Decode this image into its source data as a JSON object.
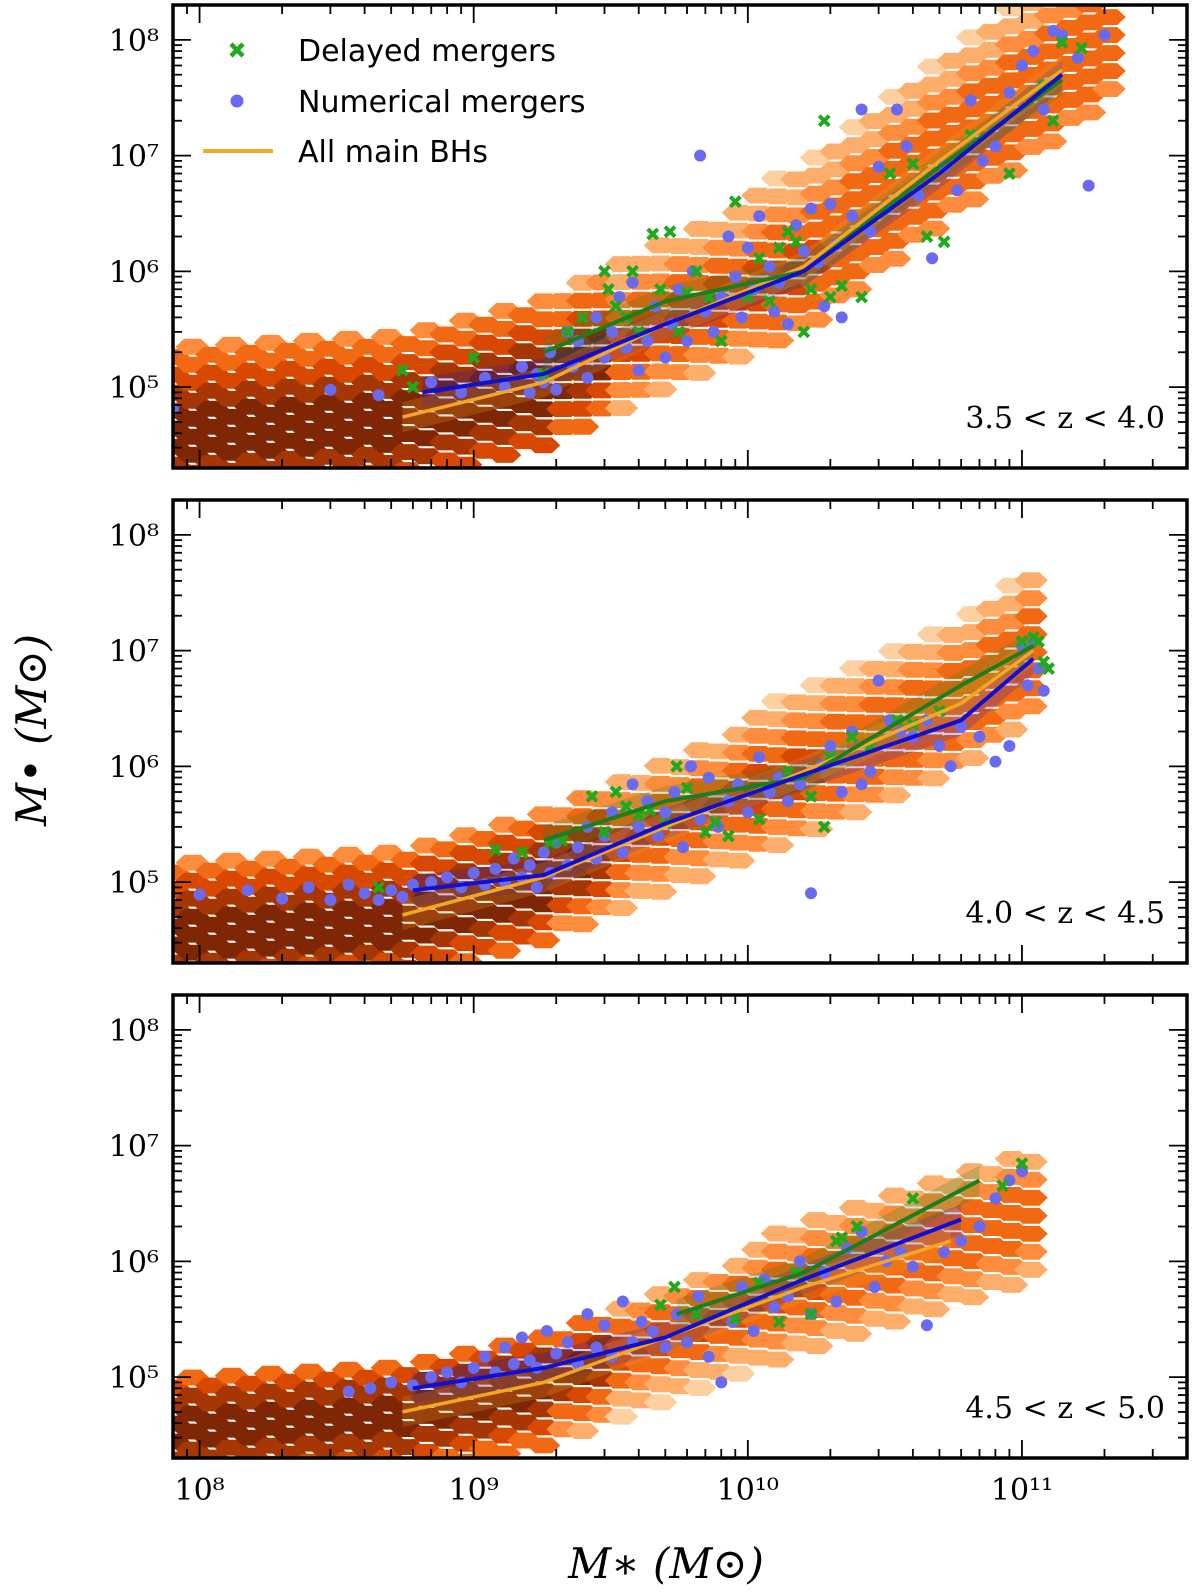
{
  "chart_data": {
    "type": "scatter",
    "x_scale": "log",
    "y_scale": "log",
    "xlabel": "M∗ (M⊙)",
    "ylabel": "M• (M⊙)",
    "xlim": [
      80000000,
      400000000000
    ],
    "ylim": [
      20000,
      200000000
    ],
    "x_ticks": [
      {
        "value": 100000000,
        "label": "10⁸"
      },
      {
        "value": 1000000000,
        "label": "10⁹"
      },
      {
        "value": 10000000000,
        "label": "10¹⁰"
      },
      {
        "value": 100000000000,
        "label": "10¹¹"
      }
    ],
    "y_ticks": [
      {
        "value": 100000,
        "label": "10⁵"
      },
      {
        "value": 1000000,
        "label": "10⁶"
      },
      {
        "value": 10000000,
        "label": "10⁷"
      },
      {
        "value": 100000000,
        "label": "10⁸"
      }
    ],
    "legend": {
      "position": "top-left",
      "entries": [
        {
          "label": "Delayed mergers",
          "marker": "x",
          "color": "#1fa91f"
        },
        {
          "label": "Numerical mergers",
          "marker": "dot",
          "color": "#6a6af0"
        },
        {
          "label": "All main BHs",
          "marker": "line",
          "color": "#f5a623"
        }
      ]
    },
    "colors": {
      "delayed": "#1fa91f",
      "numerical": "#6a6af0",
      "delayed_median": "#1e7e1e",
      "numerical_median": "#1010d0",
      "all_median": "#f5a623",
      "hexbin_light": "#fde0c5",
      "hexbin_dark": "#8c2a04"
    },
    "panels": [
      {
        "label": "3.5 < z < 4.0",
        "all_main_bhs_median": {
          "x": [
            550000000,
            1800000000,
            5000000000,
            16000000000,
            50000000000,
            140000000000
          ],
          "y": [
            55000,
            110000,
            350000,
            1100000,
            9000000,
            55000000
          ]
        },
        "numerical_median": {
          "x": [
            650000000,
            1800000000,
            5000000000,
            16000000000,
            50000000000,
            140000000000
          ],
          "y": [
            90000,
            130000,
            350000,
            1000000,
            7000000,
            50000000
          ]
        },
        "delayed_median": {
          "x": [
            1800000000,
            5000000000,
            16000000000,
            50000000000,
            140000000000
          ],
          "y": [
            200000,
            550000,
            1000000,
            8000000,
            45000000
          ]
        },
        "delayed_mergers": {
          "x": [
            550000000,
            600000000,
            1000000000,
            1800000000,
            2200000000,
            2500000000,
            3000000000,
            3100000000,
            3300000000,
            3600000000,
            3800000000,
            4000000000,
            4500000000,
            4800000000,
            5200000000,
            5600000000,
            6000000000,
            6500000000,
            7200000000,
            8000000000,
            9000000000,
            10000000000,
            11000000000,
            12000000000,
            13000000000,
            14000000000,
            15000000000,
            16000000000,
            17000000000,
            19000000000,
            20000000000,
            22000000000,
            26000000000,
            33000000000,
            40000000000,
            45000000000,
            52000000000,
            65000000000,
            90000000000,
            120000000000,
            130000000000,
            140000000000,
            165000000000
          ],
          "y": [
            140000,
            100000,
            180000,
            130000,
            300000,
            400000,
            1000000,
            700000,
            500000,
            400000,
            1000000,
            300000,
            2100000,
            700000,
            2200000,
            300000,
            650000,
            1000000,
            600000,
            250000,
            4000000,
            600000,
            1300000,
            550000,
            1600000,
            2200000,
            1800000,
            300000,
            700000,
            20000000,
            600000,
            750000,
            600000,
            7000000,
            8500000,
            2000000,
            1800000,
            15000000,
            7000000,
            40000000,
            20000000,
            95000000,
            85000000
          ]
        },
        "numerical_mergers": {
          "x": [
            80000000,
            300000000,
            450000000,
            700000000,
            900000000,
            1100000000,
            1300000000,
            1500000000,
            1600000000,
            1700000000,
            1800000000,
            1900000000,
            2000000000,
            2200000000,
            2300000000,
            2400000000,
            2600000000,
            2800000000,
            3000000000,
            3200000000,
            3400000000,
            3600000000,
            3800000000,
            4000000000,
            4300000000,
            4600000000,
            5000000000,
            5300000000,
            5600000000,
            6000000000,
            6300000000,
            6700000000,
            7000000000,
            7500000000,
            8000000000,
            8500000000,
            9000000000,
            9500000000,
            10000000000,
            10500000000,
            11000000000,
            12000000000,
            12500000000,
            13000000000,
            14000000000,
            15000000000,
            16000000000,
            17000000000,
            18000000000,
            19000000000,
            20000000000,
            21000000000,
            22000000000,
            24000000000,
            26000000000,
            28000000000,
            30000000000,
            32000000000,
            35000000000,
            38000000000,
            42000000000,
            47000000000,
            52000000000,
            58000000000,
            65000000000,
            72000000000,
            80000000000,
            90000000000,
            100000000000,
            110000000000,
            120000000000,
            130000000000,
            140000000000,
            160000000000,
            175000000000,
            200000000000
          ],
          "y": [
            65000,
            95000,
            85000,
            110000,
            90000,
            120000,
            100000,
            150000,
            90000,
            130000,
            110000,
            200000,
            95000,
            300000,
            150000,
            250000,
            120000,
            400000,
            180000,
            300000,
            600000,
            220000,
            800000,
            140000,
            250000,
            500000,
            180000,
            350000,
            700000,
            250000,
            1000000,
            10000000,
            450000,
            300000,
            600000,
            2000000,
            900000,
            400000,
            1600000,
            700000,
            3000000,
            1100000,
            450000,
            800000,
            350000,
            2500000,
            1500000,
            3500000,
            1200000,
            500000,
            3800000,
            1700000,
            400000,
            3000000,
            25000000,
            2200000,
            8000000,
            3500000,
            25000000,
            12000000,
            4500000,
            1300000,
            8000000,
            5000000,
            30000000,
            9000000,
            12000000,
            35000000,
            60000000,
            80000000,
            25000000,
            120000000,
            110000000,
            70000000,
            5500000,
            110000000
          ]
        }
      },
      {
        "label": "4.0 < z < 4.5",
        "all_main_bhs_median": {
          "x": [
            550000000,
            1800000000,
            5000000000,
            16000000000,
            60000000000,
            110000000000
          ],
          "y": [
            52000,
            110000,
            300000,
            900000,
            3500000,
            10000000
          ]
        },
        "numerical_median": {
          "x": [
            600000000,
            1800000000,
            5000000000,
            16000000000,
            60000000000,
            110000000000
          ],
          "y": [
            85000,
            115000,
            320000,
            850000,
            2500000,
            8500000
          ]
        },
        "delayed_median": {
          "x": [
            1800000000,
            5000000000,
            16000000000,
            60000000000,
            110000000000
          ],
          "y": [
            230000,
            500000,
            800000,
            5000000,
            11000000
          ]
        },
        "delayed_mergers": {
          "x": [
            450000000,
            1200000000,
            1500000000,
            1900000000,
            2100000000,
            2700000000,
            3000000000,
            3300000000,
            3600000000,
            4000000000,
            4400000000,
            5000000000,
            5500000000,
            6000000000,
            7000000000,
            7600000000,
            8500000000,
            11000000000,
            14000000000,
            17000000000,
            19000000000,
            20000000000,
            24000000000,
            28000000000,
            35000000000,
            40000000000,
            50000000000,
            100000000000,
            110000000000,
            115000000000,
            120000000000,
            125000000000
          ],
          "y": [
            90000,
            190000,
            180000,
            220000,
            230000,
            550000,
            270000,
            600000,
            450000,
            380000,
            420000,
            320000,
            1000000,
            650000,
            270000,
            330000,
            250000,
            350000,
            900000,
            550000,
            300000,
            1200000,
            1800000,
            1500000,
            2500000,
            2300000,
            3000000,
            12000000,
            13000000,
            12000000,
            8000000,
            7000000
          ]
        },
        "numerical_mergers": {
          "x": [
            100000000,
            150000000,
            200000000,
            250000000,
            300000000,
            350000000,
            400000000,
            450000000,
            500000000,
            550000000,
            600000000,
            700000000,
            800000000,
            900000000,
            1000000000,
            1100000000,
            1200000000,
            1300000000,
            1400000000,
            1500000000,
            1600000000,
            1700000000,
            1800000000,
            1900000000,
            2000000000,
            2200000000,
            2400000000,
            2600000000,
            2800000000,
            3000000000,
            3200000000,
            3500000000,
            3800000000,
            4000000000,
            4300000000,
            4700000000,
            5000000000,
            5400000000,
            5800000000,
            6200000000,
            6700000000,
            7200000000,
            7800000000,
            8500000000,
            9200000000,
            10000000000,
            11000000000,
            12000000000,
            13000000000,
            14000000000,
            15500000000,
            17000000000,
            18500000000,
            20000000000,
            22000000000,
            24000000000,
            26000000000,
            28000000000,
            30000000000,
            33000000000,
            36000000000,
            40000000000,
            45000000000,
            50000000000,
            55000000000,
            60000000000,
            70000000000,
            80000000000,
            90000000000,
            100000000000,
            105000000000,
            110000000000,
            115000000000,
            120000000000
          ],
          "y": [
            78000,
            85000,
            72000,
            90000,
            70000,
            95000,
            80000,
            70000,
            85000,
            75000,
            95000,
            100000,
            110000,
            90000,
            120000,
            95000,
            130000,
            100000,
            160000,
            110000,
            140000,
            90000,
            180000,
            120000,
            220000,
            140000,
            200000,
            300000,
            160000,
            250000,
            400000,
            180000,
            700000,
            300000,
            500000,
            250000,
            400000,
            600000,
            200000,
            1000000,
            350000,
            800000,
            300000,
            500000,
            700000,
            400000,
            1200000,
            600000,
            800000,
            500000,
            700000,
            80000,
            1000000,
            1500000,
            600000,
            2000000,
            700000,
            900000,
            5500000,
            2500000,
            2000000,
            1800000,
            2500000,
            1500000,
            1000000,
            2200000,
            1800000,
            1100000,
            1500000,
            11000000,
            5000000,
            12000000,
            7000000,
            4500000
          ]
        }
      },
      {
        "label": "4.5 < z < 5.0",
        "all_main_bhs_median": {
          "x": [
            550000000,
            1800000000,
            5000000000,
            16000000000,
            55000000000
          ],
          "y": [
            50000,
            90000,
            220000,
            600000,
            1500000
          ]
        },
        "numerical_median": {
          "x": [
            600000000,
            1800000000,
            5000000000,
            16000000000,
            60000000000
          ],
          "y": [
            80000,
            120000,
            220000,
            700000,
            2300000
          ]
        },
        "delayed_median": {
          "x": [
            5500000000,
            16000000000,
            70000000000
          ],
          "y": [
            350000,
            800000,
            5000000
          ]
        },
        "delayed_mergers": {
          "x": [
            4800000000,
            5400000000,
            6500000000,
            9000000000,
            11000000000,
            13000000000,
            15000000000,
            17000000000,
            21000000000,
            22000000000,
            25000000000,
            40000000000,
            85000000000,
            100000000000
          ],
          "y": [
            420000,
            600000,
            350000,
            320000,
            650000,
            300000,
            800000,
            350000,
            1500000,
            1600000,
            2000000,
            3500000,
            4500000,
            7000000
          ]
        },
        "numerical_mergers": {
          "x": [
            350000000,
            420000000,
            500000000,
            600000000,
            700000000,
            800000000,
            900000000,
            1000000000,
            1100000000,
            1200000000,
            1300000000,
            1400000000,
            1500000000,
            1600000000,
            1700000000,
            1850000000,
            2000000000,
            2200000000,
            2400000000,
            2600000000,
            2800000000,
            3000000000,
            3200000000,
            3500000000,
            3800000000,
            4100000000,
            4500000000,
            5000000000,
            5500000000,
            6000000000,
            6600000000,
            7200000000,
            8000000000,
            8800000000,
            9500000000,
            10500000000,
            11500000000,
            12500000000,
            14000000000,
            15500000000,
            17000000000,
            19000000000,
            21000000000,
            23000000000,
            26000000000,
            29000000000,
            32000000000,
            36000000000,
            40000000000,
            45000000000,
            52000000000,
            60000000000,
            70000000000,
            80000000000,
            90000000000,
            100000000000
          ],
          "y": [
            75000,
            80000,
            90000,
            85000,
            100000,
            110000,
            90000,
            120000,
            150000,
            110000,
            180000,
            130000,
            220000,
            140000,
            120000,
            250000,
            160000,
            200000,
            130000,
            350000,
            180000,
            280000,
            150000,
            450000,
            200000,
            300000,
            250000,
            180000,
            350000,
            200000,
            500000,
            150000,
            90000,
            300000,
            600000,
            250000,
            700000,
            400000,
            500000,
            1000000,
            350000,
            800000,
            450000,
            1300000,
            1800000,
            600000,
            1000000,
            1200000,
            900000,
            280000,
            1200000,
            1500000,
            2000000,
            3500000,
            5000000,
            6000000
          ]
        }
      }
    ]
  }
}
